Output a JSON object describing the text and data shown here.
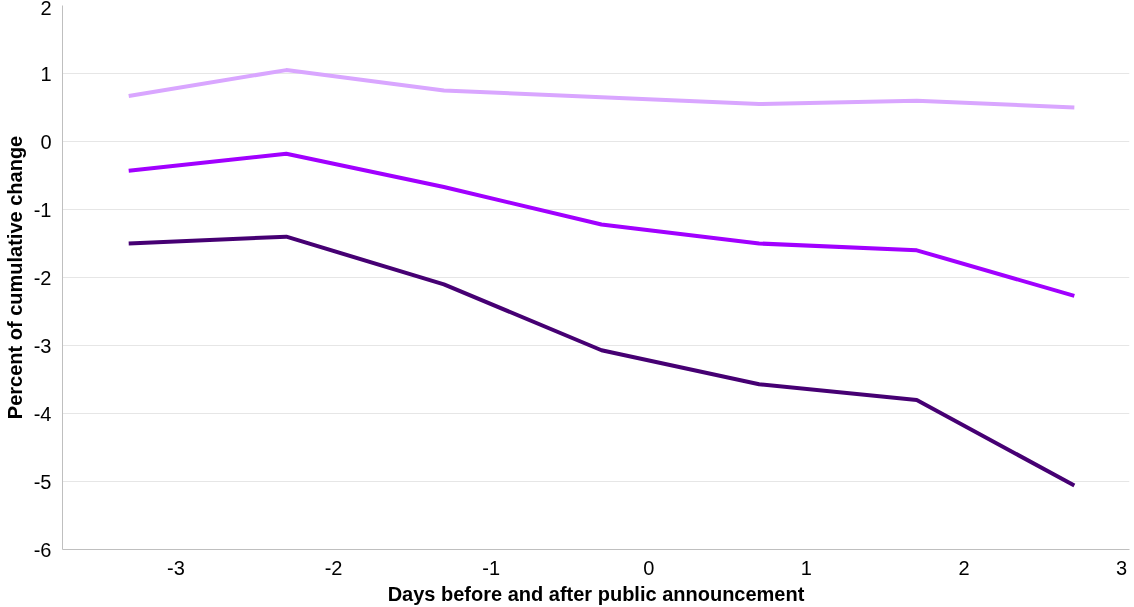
{
  "chart_data": {
    "type": "line",
    "xlabel": "Days before and after public announcement",
    "ylabel": "Percent of cumulative change",
    "x": [
      -3.3,
      -2.3,
      -1.3,
      -0.3,
      0.7,
      1.7,
      2.7
    ],
    "series": [
      {
        "color": "#d9a6ff",
        "values": [
          0.67,
          1.05,
          0.75,
          0.65,
          0.55,
          0.6,
          0.5
        ]
      },
      {
        "color": "#a100ff",
        "values": [
          -0.43,
          -0.18,
          -0.67,
          -1.22,
          -1.5,
          -1.6,
          -2.27
        ]
      },
      {
        "color": "#460073",
        "values": [
          -1.5,
          -1.4,
          -2.1,
          -3.07,
          -3.57,
          -3.8,
          -5.06
        ]
      }
    ],
    "xlim": [
      -3.72,
      3.05
    ],
    "xticks": [
      -3,
      -2,
      -1,
      0,
      1,
      2,
      3
    ],
    "ylim": [
      -6,
      2
    ],
    "yticks": [
      -6,
      -5,
      -4,
      -3,
      -2,
      -1,
      0,
      1,
      2
    ],
    "grid": "y",
    "marker": "none",
    "line_style": "solid"
  }
}
